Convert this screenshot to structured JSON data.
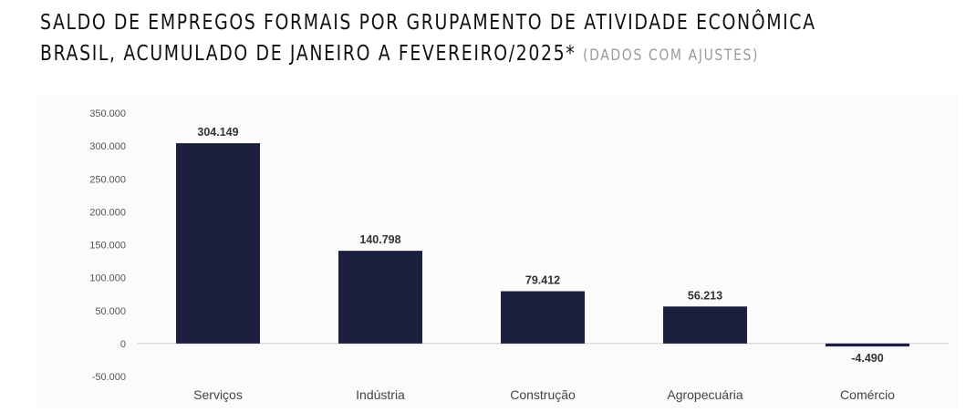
{
  "header": {
    "title_line1": "SALDO DE EMPREGOS FORMAIS POR GRUPAMENTO DE ATIVIDADE ECONÔMICA",
    "title_line2": "BRASIL, ACUMULADO DE JANEIRO A FEVEREIRO/2025*",
    "note": "(DADOS COM AJUSTES)"
  },
  "colors": {
    "bar": "#1c1f3d",
    "axis": "#cccccc"
  },
  "chart_data": {
    "type": "bar",
    "categories": [
      "Serviços",
      "Indústria",
      "Construção",
      "Agropecuária",
      "Comércio"
    ],
    "values": [
      304149,
      140798,
      79412,
      56213,
      -4490
    ],
    "value_labels": [
      "304.149",
      "140.798",
      "79.412",
      "56.213",
      "-4.490"
    ],
    "title": "SALDO DE EMPREGOS FORMAIS POR GRUPAMENTO DE ATIVIDADE ECONÔMICA BRASIL, ACUMULADO DE JANEIRO A FEVEREIRO/2025*",
    "xlabel": "",
    "ylabel": "",
    "ylim": [
      -50000,
      350000
    ],
    "yticks": [
      350000,
      300000,
      250000,
      200000,
      150000,
      100000,
      50000,
      0,
      -50000
    ],
    "ytick_labels": [
      "350.000",
      "300.000",
      "250.000",
      "200.000",
      "150.000",
      "100.000",
      "50.000",
      "0",
      "-50.000"
    ],
    "grid": false,
    "legend": "none"
  }
}
